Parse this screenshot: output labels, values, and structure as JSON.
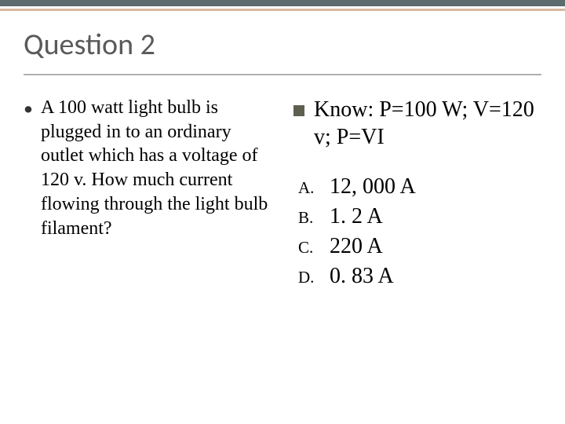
{
  "slide": {
    "title": "Question 2",
    "background_color": "#ffffff",
    "title_font_family": "Calibri",
    "title_fontsize": 38,
    "title_color": "#5a5a5a",
    "top_bar_colors": [
      "#5b6b6e",
      "#ffffff",
      "#d8b8a0"
    ],
    "rule_color": "#b0b0b0"
  },
  "question": {
    "bullet": "•",
    "text": "A 100 watt light bulb is plugged in to an ordinary outlet which has a voltage of 120 v. How much current flowing through the light bulb filament?",
    "fontsize": 24,
    "color": "#000000"
  },
  "know": {
    "text": "Know: P=100 W; V=120 v; P=VI",
    "fontsize": 28,
    "bullet_color": "#5f5f4f"
  },
  "answers": {
    "label_fontsize": 21,
    "text_fontsize": 28,
    "items": [
      {
        "label": "A.",
        "text": "12, 000 A"
      },
      {
        "label": "B.",
        "text": "1. 2 A"
      },
      {
        "label": "C.",
        "text": "220 A"
      },
      {
        "label": "D.",
        "text": "0. 83 A"
      }
    ]
  }
}
